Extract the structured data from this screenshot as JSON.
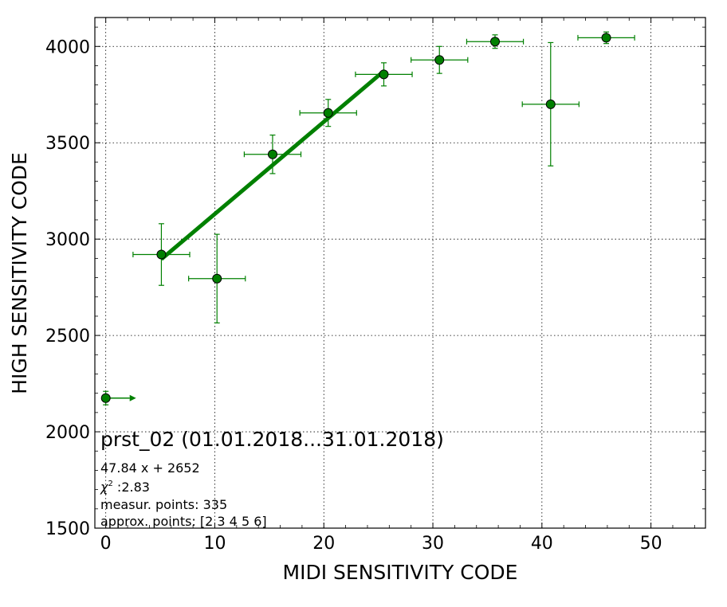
{
  "chart_data": {
    "type": "scatter",
    "xlabel": "MIDI SENSITIVITY CODE",
    "ylabel": "HIGH SENSITIVITY CODE",
    "xlim": [
      -1,
      55
    ],
    "ylim": [
      1500,
      4150
    ],
    "xticks": [
      0,
      10,
      20,
      30,
      40,
      50
    ],
    "yticks": [
      1500,
      2000,
      2500,
      3000,
      3500,
      4000
    ],
    "grid": true,
    "marker_color": "#008000",
    "fit_color": "#008000",
    "points": [
      {
        "x": 0,
        "y": 2175,
        "xerr": 0,
        "yerr": 35,
        "lower_limit": true
      },
      {
        "x": 5.1,
        "y": 2920,
        "xerr": 2.6,
        "yerr": 160
      },
      {
        "x": 10.2,
        "y": 2795,
        "xerr": 2.6,
        "yerr": 230
      },
      {
        "x": 15.3,
        "y": 3440,
        "xerr": 2.6,
        "yerr": 100
      },
      {
        "x": 20.4,
        "y": 3655,
        "xerr": 2.6,
        "yerr": 70
      },
      {
        "x": 25.5,
        "y": 3855,
        "xerr": 2.6,
        "yerr": 60
      },
      {
        "x": 30.6,
        "y": 3930,
        "xerr": 2.6,
        "yerr": 70
      },
      {
        "x": 35.7,
        "y": 4025,
        "xerr": 2.6,
        "yerr": 35
      },
      {
        "x": 40.8,
        "y": 3700,
        "xerr": 2.6,
        "yerr": 320
      },
      {
        "x": 45.9,
        "y": 4045,
        "xerr": 2.6,
        "yerr": 30
      }
    ],
    "fit": {
      "slope": 47.84,
      "intercept": 2652,
      "x_range": [
        5.1,
        25.5
      ]
    },
    "annotations": {
      "title": "prst_02 (01.01.2018...31.01.2018)",
      "equation": "47.84 x + 2652",
      "chi_symbol": "χ",
      "chi_exp": "2",
      "chi_value": " :2.83",
      "measur": "measur. points: 335",
      "approx": "approx. points: [2 3 4 5 6]"
    }
  }
}
